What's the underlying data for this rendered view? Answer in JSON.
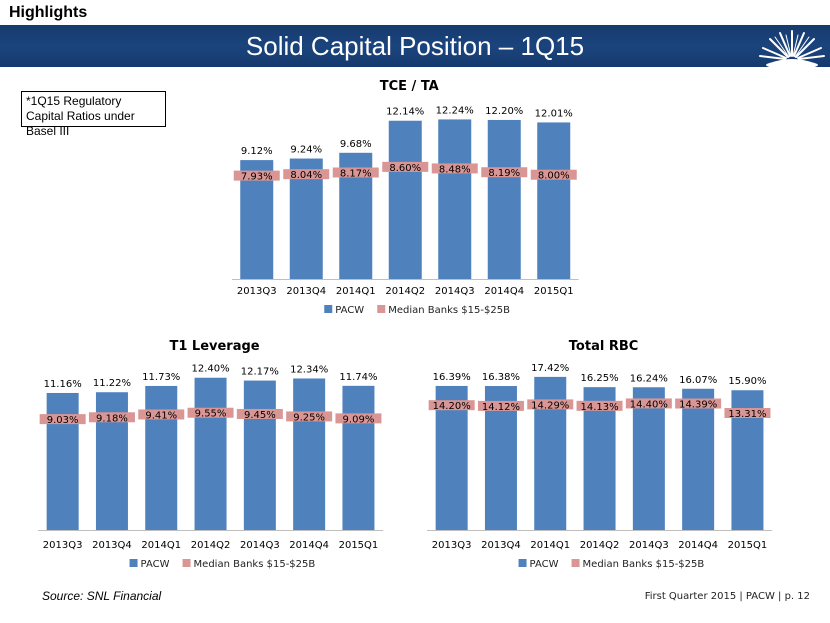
{
  "header": {
    "section_label": "Highlights",
    "title": "Solid Capital Position – 1Q15"
  },
  "note": "*1Q15 Regulatory Capital Ratios under Basel III",
  "source": "Source: SNL Financial",
  "footer": "First Quarter 2015 | PACW | p. 12",
  "colors": {
    "banner": "#1B447D",
    "bar": "#4F81BD",
    "median": "#D99694"
  },
  "chart_data": [
    {
      "type": "bar",
      "title": "TCE / TA",
      "categories": [
        "2013Q3",
        "2013Q4",
        "2014Q1",
        "2014Q2",
        "2014Q3",
        "2014Q4",
        "2015Q1"
      ],
      "series": [
        {
          "name": "PACW",
          "values": [
            9.12,
            9.24,
            9.68,
            12.14,
            12.24,
            12.2,
            12.01
          ],
          "labels": [
            "9.12%",
            "9.24%",
            "9.68%",
            "12.14%",
            "12.24%",
            "12.20%",
            "12.01%"
          ]
        },
        {
          "name": "Median Banks $15-$25B",
          "values": [
            7.93,
            8.04,
            8.17,
            8.6,
            8.48,
            8.19,
            8.0
          ],
          "labels": [
            "7.93%",
            "8.04%",
            "8.17%",
            "8.60%",
            "8.48%",
            "8.19%",
            "8.00%"
          ]
        }
      ],
      "ylim": [
        0,
        13.5
      ]
    },
    {
      "type": "bar",
      "title": "T1 Leverage",
      "categories": [
        "2013Q3",
        "2013Q4",
        "2014Q1",
        "2014Q2",
        "2014Q3",
        "2014Q4",
        "2015Q1"
      ],
      "series": [
        {
          "name": "PACW",
          "values": [
            11.16,
            11.22,
            11.73,
            12.4,
            12.17,
            12.34,
            11.74
          ],
          "labels": [
            "11.16%",
            "11.22%",
            "11.73%",
            "12.40%",
            "12.17%",
            "12.34%",
            "11.74%"
          ]
        },
        {
          "name": "Median Banks $15-$25B",
          "values": [
            9.03,
            9.18,
            9.41,
            9.55,
            9.45,
            9.25,
            9.09
          ],
          "labels": [
            "9.03%",
            "9.18%",
            "9.41%",
            "9.55%",
            "9.45%",
            "9.25%",
            "9.09%"
          ]
        }
      ],
      "ylim": [
        0,
        13.6
      ]
    },
    {
      "type": "bar",
      "title": "Total RBC",
      "categories": [
        "2013Q3",
        "2013Q4",
        "2014Q1",
        "2014Q2",
        "2014Q3",
        "2014Q4",
        "2015Q1"
      ],
      "series": [
        {
          "name": "PACW",
          "values": [
            16.39,
            16.38,
            17.42,
            16.25,
            16.24,
            16.07,
            15.9
          ],
          "labels": [
            "16.39%",
            "16.38%",
            "17.42%",
            "16.25%",
            "16.24%",
            "16.07%",
            "15.90%"
          ]
        },
        {
          "name": "Median Banks $15-$25B",
          "values": [
            14.2,
            14.12,
            14.29,
            14.13,
            14.4,
            14.39,
            13.31
          ],
          "labels": [
            "14.20%",
            "14.12%",
            "14.29%",
            "14.13%",
            "14.40%",
            "14.39%",
            "13.31%"
          ]
        }
      ],
      "ylim": [
        0,
        19.0
      ]
    }
  ]
}
